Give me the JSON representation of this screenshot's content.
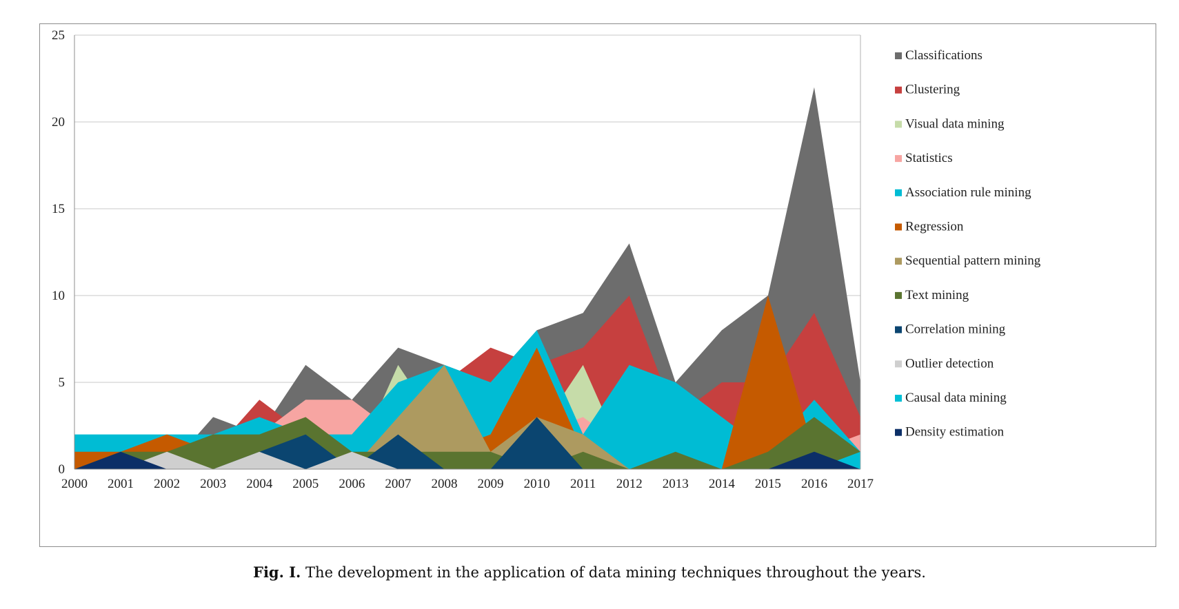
{
  "caption": {
    "prefix": "Fig. I.",
    "text": " The development in the application of data mining techniques throughout the years."
  },
  "chart_data": {
    "type": "area",
    "stacked": false,
    "x": [
      2000,
      2001,
      2002,
      2003,
      2004,
      2005,
      2006,
      2007,
      2008,
      2009,
      2010,
      2011,
      2012,
      2013,
      2014,
      2015,
      2016,
      2017
    ],
    "ylim": [
      0,
      25
    ],
    "yticks": [
      0,
      5,
      10,
      15,
      20,
      25
    ],
    "grid": true,
    "legend_position": "right",
    "series": [
      {
        "name": "Classifications",
        "color": "#6d6d6d",
        "values": [
          0,
          0,
          0,
          3,
          2,
          6,
          4,
          7,
          6,
          5,
          8,
          9,
          13,
          5,
          8,
          10,
          22,
          5
        ]
      },
      {
        "name": "Clustering",
        "color": "#c6403f",
        "values": [
          0,
          0,
          0,
          1,
          4,
          2,
          1,
          1,
          5,
          7,
          6,
          7,
          10,
          3,
          5,
          5,
          9,
          3
        ]
      },
      {
        "name": "Visual data mining",
        "color": "#c6dca9",
        "values": [
          0,
          0,
          0,
          0,
          0,
          0,
          0,
          6,
          2,
          1,
          2,
          6,
          0,
          0,
          0,
          0,
          0,
          0
        ]
      },
      {
        "name": "Statistics",
        "color": "#f7a5a2",
        "values": [
          0,
          0,
          0,
          1,
          2,
          4,
          4,
          2,
          1,
          1,
          2,
          3,
          1,
          0,
          1,
          1,
          1,
          2
        ]
      },
      {
        "name": "Association rule mining",
        "color": "#00bcd4",
        "values": [
          2,
          2,
          2,
          2,
          3,
          2,
          2,
          5,
          6,
          5,
          8,
          2,
          6,
          5,
          3,
          1,
          4,
          1
        ]
      },
      {
        "name": "Regression",
        "color": "#c55a00",
        "values": [
          1,
          1,
          2,
          1,
          1,
          0,
          1,
          0,
          1,
          2,
          7,
          1,
          0,
          0,
          0,
          10,
          1,
          0
        ]
      },
      {
        "name": "Sequential pattern mining",
        "color": "#ad9a60",
        "values": [
          0,
          0,
          0,
          0,
          0,
          0,
          0,
          3,
          6,
          1,
          3,
          2,
          0,
          0,
          0,
          0,
          0,
          0
        ]
      },
      {
        "name": "Text mining",
        "color": "#5a7430",
        "values": [
          0,
          1,
          1,
          2,
          2,
          3,
          1,
          1,
          1,
          1,
          0,
          1,
          0,
          1,
          0,
          1,
          3,
          1
        ]
      },
      {
        "name": "Correlation mining",
        "color": "#0b4570",
        "values": [
          0,
          0,
          0,
          0,
          1,
          2,
          0,
          2,
          0,
          0,
          3,
          0,
          0,
          0,
          0,
          0,
          1,
          0
        ]
      },
      {
        "name": "Outlier detection",
        "color": "#cfcfcf",
        "values": [
          0,
          0,
          1,
          0,
          1,
          0,
          1,
          0,
          0,
          0,
          0,
          0,
          0,
          0,
          0,
          0,
          0,
          0
        ]
      },
      {
        "name": "Causal data mining",
        "color": "#00c0d6",
        "values": [
          0,
          0,
          0,
          0,
          0,
          0,
          0,
          0,
          0,
          0,
          0,
          0,
          0,
          0,
          0,
          0,
          0,
          1
        ]
      },
      {
        "name": "Density estimation",
        "color": "#0c2f67",
        "values": [
          0,
          1,
          0,
          0,
          0,
          0,
          0,
          0,
          0,
          0,
          0,
          0,
          0,
          0,
          0,
          0,
          1,
          0
        ]
      }
    ]
  }
}
